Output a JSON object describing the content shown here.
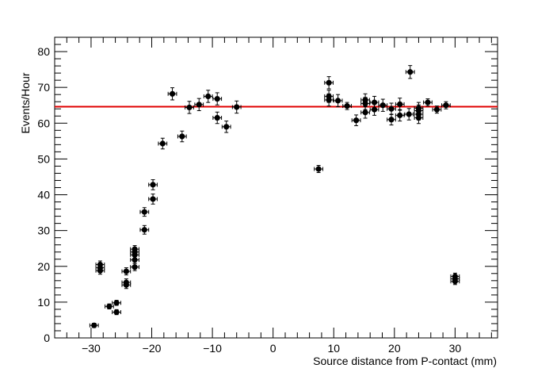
{
  "chart_data": {
    "type": "scatter",
    "title": "",
    "xlabel": "Source distance from P-contact (mm)",
    "ylabel": "Events/Hour",
    "xlim": [
      -36,
      37
    ],
    "ylim": [
      0,
      84
    ],
    "xticks": [
      -30,
      -20,
      -10,
      0,
      10,
      20,
      30
    ],
    "yticks": [
      0,
      10,
      20,
      30,
      40,
      50,
      60,
      70,
      80
    ],
    "xtick_labels": [
      "−30",
      "−20",
      "−10",
      "0",
      "10",
      "20",
      "30"
    ],
    "ytick_labels": [
      "0",
      "10",
      "20",
      "30",
      "40",
      "50",
      "60",
      "70",
      "80"
    ],
    "grid": false,
    "legend": "none",
    "marker_color": "#000000",
    "fit_line": {
      "y": 64.6,
      "color": "#e00000"
    },
    "points": [
      {
        "x": -29.5,
        "y": 3.5,
        "yerr": 0.6
      },
      {
        "x": -28.5,
        "y": 18.8,
        "yerr": 1.0
      },
      {
        "x": -28.5,
        "y": 19.6,
        "yerr": 1.0
      },
      {
        "x": -28.5,
        "y": 20.5,
        "yerr": 1.0
      },
      {
        "x": -27.0,
        "y": 8.8,
        "yerr": 0.7
      },
      {
        "x": -25.8,
        "y": 9.8,
        "yerr": 0.7
      },
      {
        "x": -25.8,
        "y": 7.2,
        "yerr": 0.7
      },
      {
        "x": -24.2,
        "y": 14.8,
        "yerr": 1.0
      },
      {
        "x": -24.2,
        "y": 15.5,
        "yerr": 1.0
      },
      {
        "x": -24.2,
        "y": 18.6,
        "yerr": 1.0
      },
      {
        "x": -22.8,
        "y": 19.8,
        "yerr": 1.0
      },
      {
        "x": -22.8,
        "y": 21.8,
        "yerr": 1.0
      },
      {
        "x": -22.8,
        "y": 23.2,
        "yerr": 1.0
      },
      {
        "x": -22.8,
        "y": 24.0,
        "yerr": 1.0
      },
      {
        "x": -22.8,
        "y": 24.8,
        "yerr": 1.0
      },
      {
        "x": -21.2,
        "y": 30.2,
        "yerr": 1.2
      },
      {
        "x": -21.2,
        "y": 35.2,
        "yerr": 1.2
      },
      {
        "x": -19.8,
        "y": 38.8,
        "yerr": 1.4
      },
      {
        "x": -19.8,
        "y": 42.8,
        "yerr": 1.4
      },
      {
        "x": -18.2,
        "y": 54.3,
        "yerr": 1.5
      },
      {
        "x": -16.6,
        "y": 68.2,
        "yerr": 1.7
      },
      {
        "x": -15.0,
        "y": 56.3,
        "yerr": 1.5
      },
      {
        "x": -13.8,
        "y": 64.4,
        "yerr": 1.7
      },
      {
        "x": -12.2,
        "y": 65.2,
        "yerr": 1.7
      },
      {
        "x": -10.7,
        "y": 67.5,
        "yerr": 1.7
      },
      {
        "x": -9.2,
        "y": 61.5,
        "yerr": 1.6
      },
      {
        "x": -9.2,
        "y": 66.8,
        "yerr": 1.7
      },
      {
        "x": -7.7,
        "y": 59.0,
        "yerr": 1.6
      },
      {
        "x": -6.0,
        "y": 64.5,
        "yerr": 1.7
      },
      {
        "x": 7.5,
        "y": 47.2,
        "yerr": 1.0
      },
      {
        "x": 9.2,
        "y": 71.3,
        "yerr": 1.7
      },
      {
        "x": 9.2,
        "y": 67.5,
        "yerr": 1.7
      },
      {
        "x": 9.2,
        "y": 66.5,
        "yerr": 1.7
      },
      {
        "x": 10.7,
        "y": 66.3,
        "yerr": 1.7
      },
      {
        "x": 12.2,
        "y": 64.8,
        "yerr": 1.0
      },
      {
        "x": 13.7,
        "y": 60.8,
        "yerr": 1.5
      },
      {
        "x": 15.2,
        "y": 63.0,
        "yerr": 1.6
      },
      {
        "x": 15.2,
        "y": 65.5,
        "yerr": 1.7
      },
      {
        "x": 15.2,
        "y": 66.5,
        "yerr": 1.7
      },
      {
        "x": 16.7,
        "y": 63.8,
        "yerr": 1.6
      },
      {
        "x": 16.7,
        "y": 65.8,
        "yerr": 1.7
      },
      {
        "x": 18.1,
        "y": 65.0,
        "yerr": 1.7
      },
      {
        "x": 19.5,
        "y": 61.0,
        "yerr": 1.5
      },
      {
        "x": 19.5,
        "y": 64.0,
        "yerr": 1.6
      },
      {
        "x": 20.9,
        "y": 62.2,
        "yerr": 1.6
      },
      {
        "x": 20.9,
        "y": 65.3,
        "yerr": 1.7
      },
      {
        "x": 22.4,
        "y": 62.5,
        "yerr": 1.6
      },
      {
        "x": 22.6,
        "y": 74.3,
        "yerr": 1.8
      },
      {
        "x": 24.0,
        "y": 61.5,
        "yerr": 1.6
      },
      {
        "x": 24.0,
        "y": 62.5,
        "yerr": 1.6
      },
      {
        "x": 24.0,
        "y": 63.5,
        "yerr": 1.6
      },
      {
        "x": 24.0,
        "y": 64.2,
        "yerr": 1.6
      },
      {
        "x": 25.5,
        "y": 65.8,
        "yerr": 1.0
      },
      {
        "x": 27.0,
        "y": 63.8,
        "yerr": 1.0
      },
      {
        "x": 28.5,
        "y": 65.0,
        "yerr": 1.0
      },
      {
        "x": 30.0,
        "y": 15.8,
        "yerr": 0.9
      },
      {
        "x": 30.0,
        "y": 16.5,
        "yerr": 0.9
      },
      {
        "x": 30.0,
        "y": 17.2,
        "yerr": 0.9
      }
    ],
    "xerr": 0.7
  }
}
